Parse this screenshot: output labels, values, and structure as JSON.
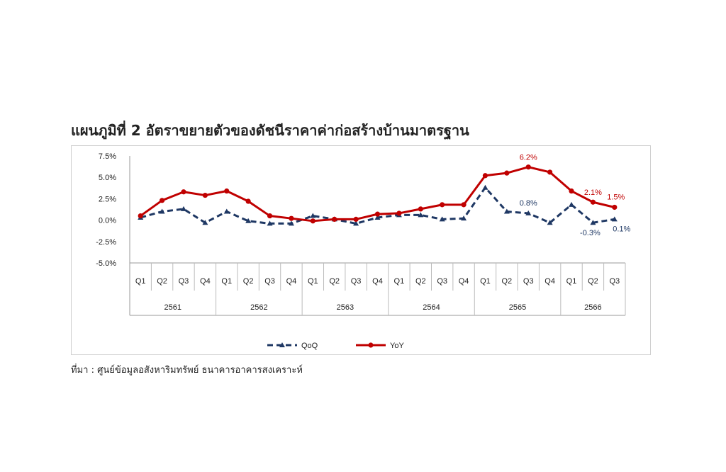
{
  "title": "แผนภูมิที่ 2 อัตราขยายตัวของดัชนีราคาค่าก่อสร้างบ้านมาตรฐาน",
  "source": "ที่มา : ศูนย์ข้อมูลอสังหาริมทรัพย์ ธนาคารอาคารสงเคราะห์",
  "chart_data": {
    "type": "line",
    "y_ticks": [
      "7.5%",
      "5.0%",
      "2.5%",
      "0.0%",
      "-2.5%",
      "-5.0%"
    ],
    "ylim": [
      -5.0,
      7.5
    ],
    "categories": [
      "Q1",
      "Q2",
      "Q3",
      "Q4",
      "Q1",
      "Q2",
      "Q3",
      "Q4",
      "Q1",
      "Q2",
      "Q3",
      "Q4",
      "Q1",
      "Q2",
      "Q3",
      "Q4",
      "Q1",
      "Q2",
      "Q3",
      "Q4",
      "Q1",
      "Q2",
      "Q3"
    ],
    "years": [
      "2561",
      "2562",
      "2563",
      "2564",
      "2565",
      "2566"
    ],
    "grid": false,
    "legend_position": "bottom",
    "series": [
      {
        "name": "QoQ",
        "color": "#1f3864",
        "style": "dashed",
        "marker": "triangle",
        "values": [
          0.3,
          1.0,
          1.3,
          -0.3,
          1.0,
          -0.1,
          -0.4,
          -0.4,
          0.5,
          0.1,
          -0.4,
          0.3,
          0.6,
          0.6,
          0.1,
          0.2,
          3.8,
          1.0,
          0.8,
          -0.3,
          1.8,
          -0.3,
          0.1
        ]
      },
      {
        "name": "YoY",
        "color": "#c00000",
        "style": "solid",
        "marker": "circle",
        "values": [
          0.5,
          2.3,
          3.3,
          2.9,
          3.4,
          2.2,
          0.5,
          0.2,
          -0.1,
          0.1,
          0.1,
          0.7,
          0.8,
          1.3,
          1.8,
          1.8,
          5.2,
          5.5,
          6.2,
          5.6,
          3.4,
          2.1,
          1.5
        ]
      }
    ],
    "annotations": [
      {
        "series": "YoY",
        "index": 18,
        "label": "6.2%"
      },
      {
        "series": "YoY",
        "index": 21,
        "label": "2.1%"
      },
      {
        "series": "YoY",
        "index": 22,
        "label": "1.5%"
      },
      {
        "series": "QoQ",
        "index": 18,
        "label": "0.8%"
      },
      {
        "series": "QoQ",
        "index": 21,
        "label": "-0.3%"
      },
      {
        "series": "QoQ",
        "index": 22,
        "label": "0.1%"
      }
    ]
  }
}
